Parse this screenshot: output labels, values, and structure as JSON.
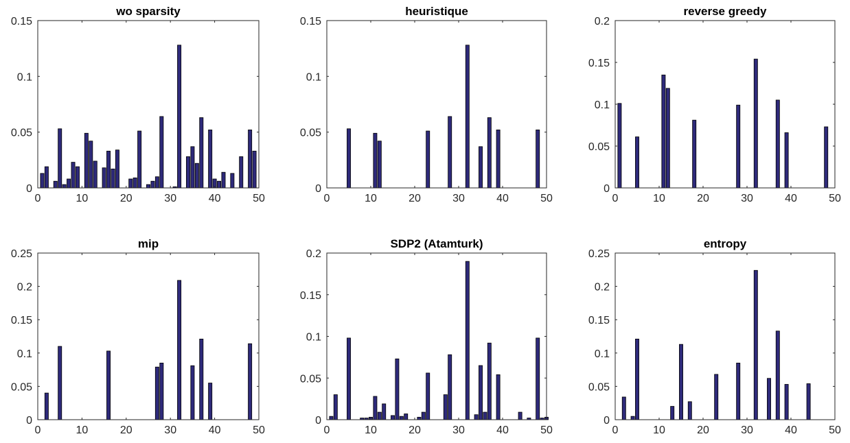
{
  "chart_data": [
    {
      "type": "bar",
      "title": "wo sparsity",
      "xlim": [
        0,
        50
      ],
      "ylim": [
        0,
        0.15
      ],
      "xticks": [
        "0",
        "10",
        "20",
        "30",
        "40",
        "50"
      ],
      "yticks": [
        "0",
        "0.05",
        "0.1",
        "0.15"
      ],
      "x": [
        1,
        2,
        4,
        5,
        6,
        7,
        8,
        9,
        11,
        12,
        13,
        15,
        16,
        17,
        18,
        21,
        22,
        23,
        25,
        26,
        27,
        28,
        31,
        32,
        34,
        35,
        36,
        37,
        39,
        40,
        41,
        42,
        44,
        46,
        48,
        49
      ],
      "values": [
        0.013,
        0.019,
        0.006,
        0.053,
        0.003,
        0.008,
        0.023,
        0.019,
        0.049,
        0.042,
        0.024,
        0.018,
        0.033,
        0.017,
        0.034,
        0.008,
        0.009,
        0.051,
        0.003,
        0.006,
        0.01,
        0.064,
        0.001,
        0.128,
        0.028,
        0.037,
        0.022,
        0.063,
        0.052,
        0.008,
        0.006,
        0.014,
        0.013,
        0.028,
        0.052,
        0.033
      ]
    },
    {
      "type": "bar",
      "title": "heuristique",
      "xlim": [
        0,
        50
      ],
      "ylim": [
        0,
        0.15
      ],
      "xticks": [
        "0",
        "10",
        "20",
        "30",
        "40",
        "50"
      ],
      "yticks": [
        "0",
        "0.05",
        "0.1",
        "0.15"
      ],
      "x": [
        5,
        11,
        12,
        23,
        28,
        32,
        35,
        37,
        39,
        48
      ],
      "values": [
        0.053,
        0.049,
        0.042,
        0.051,
        0.064,
        0.128,
        0.037,
        0.063,
        0.052,
        0.052
      ]
    },
    {
      "type": "bar",
      "title": "reverse greedy",
      "xlim": [
        0,
        50
      ],
      "ylim": [
        0,
        0.2
      ],
      "xticks": [
        "0",
        "10",
        "20",
        "30",
        "40",
        "50"
      ],
      "yticks": [
        "0",
        "0.05",
        "0.1",
        "0.15",
        "0.2"
      ],
      "x": [
        1,
        5,
        11,
        12,
        18,
        28,
        32,
        37,
        39,
        48
      ],
      "values": [
        0.101,
        0.061,
        0.135,
        0.119,
        0.081,
        0.099,
        0.154,
        0.105,
        0.066,
        0.073
      ]
    },
    {
      "type": "bar",
      "title": "mip",
      "xlim": [
        0,
        50
      ],
      "ylim": [
        0,
        0.25
      ],
      "xticks": [
        "0",
        "10",
        "20",
        "30",
        "40",
        "50"
      ],
      "yticks": [
        "0",
        "0.05",
        "0.1",
        "0.15",
        "0.2",
        "0.25"
      ],
      "x": [
        2,
        5,
        16,
        27,
        28,
        32,
        35,
        37,
        39,
        48
      ],
      "values": [
        0.04,
        0.11,
        0.103,
        0.079,
        0.085,
        0.209,
        0.081,
        0.121,
        0.055,
        0.114
      ]
    },
    {
      "type": "bar",
      "title": "SDP2 (Atamturk)",
      "xlim": [
        0,
        50
      ],
      "ylim": [
        0,
        0.2
      ],
      "xticks": [
        "0",
        "10",
        "20",
        "30",
        "40",
        "50"
      ],
      "yticks": [
        "0",
        "0.05",
        "0.1",
        "0.15",
        "0.2"
      ],
      "x": [
        1,
        2,
        5,
        8,
        9,
        10,
        11,
        12,
        13,
        15,
        16,
        17,
        18,
        21,
        22,
        23,
        27,
        28,
        32,
        34,
        35,
        36,
        37,
        39,
        44,
        46,
        48,
        49,
        50
      ],
      "values": [
        0.004,
        0.03,
        0.098,
        0.002,
        0.002,
        0.003,
        0.028,
        0.009,
        0.019,
        0.005,
        0.073,
        0.004,
        0.007,
        0.003,
        0.009,
        0.056,
        0.03,
        0.078,
        0.19,
        0.006,
        0.065,
        0.009,
        0.092,
        0.054,
        0.009,
        0.002,
        0.098,
        0.002,
        0.003
      ]
    },
    {
      "type": "bar",
      "title": "entropy",
      "xlim": [
        0,
        50
      ],
      "ylim": [
        0,
        0.25
      ],
      "xticks": [
        "0",
        "10",
        "20",
        "30",
        "40",
        "50"
      ],
      "yticks": [
        "0",
        "0.05",
        "0.1",
        "0.15",
        "0.2",
        "0.25"
      ],
      "x": [
        2,
        4,
        5,
        13,
        15,
        17,
        23,
        28,
        32,
        35,
        37,
        39,
        44
      ],
      "values": [
        0.034,
        0.005,
        0.121,
        0.02,
        0.113,
        0.027,
        0.068,
        0.085,
        0.224,
        0.062,
        0.133,
        0.053,
        0.054
      ]
    }
  ]
}
